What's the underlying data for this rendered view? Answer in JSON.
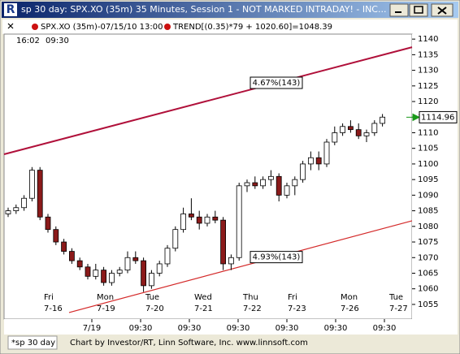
{
  "window": {
    "title": "sp 30 day: SPX.XO (35m) 35 Minutes, Session 1 - NOT MARKED INTRADAY! - INC..."
  },
  "legend": {
    "symbol": "SPX.XO (35m)-07/15/10 13:00",
    "indicator": "TREND[(0.35)*79 + 1020.60]=1048.39"
  },
  "status_bar": {
    "tab": "*sp 30 day",
    "credit": "Chart by Investor/RT, Linn Software, Inc. www.linnsoft.com"
  },
  "chart_data": {
    "type": "candlestick",
    "session_times": [
      "16:02",
      "09:30"
    ],
    "open": [
      1084,
      1085,
      1086,
      1089,
      1098,
      1083,
      1079,
      1075,
      1072,
      1069,
      1067,
      1064,
      1066,
      1062,
      1065,
      1066,
      1070,
      1069,
      1061,
      1065,
      1068,
      1073,
      1079,
      1084,
      1083,
      1081,
      1083,
      1082,
      1068,
      1070,
      1093,
      1094,
      1093,
      1095,
      1096,
      1090,
      1093,
      1095,
      1100,
      1102,
      1100,
      1107,
      1110,
      1112,
      1111,
      1109,
      1110,
      1113
    ],
    "high": [
      1086,
      1087,
      1090,
      1099,
      1099,
      1084,
      1080,
      1076,
      1073,
      1070,
      1068,
      1068,
      1067,
      1066,
      1067,
      1072,
      1072,
      1070,
      1066,
      1069,
      1074,
      1080,
      1086,
      1089,
      1085,
      1084,
      1085,
      1083,
      1071,
      1094,
      1095,
      1096,
      1096,
      1098,
      1097,
      1094,
      1096,
      1101,
      1104,
      1104,
      1108,
      1112,
      1113,
      1114,
      1113,
      1111,
      1114,
      1116
    ],
    "low": [
      1083,
      1084,
      1085,
      1088,
      1082,
      1078,
      1074,
      1071,
      1068,
      1066,
      1063,
      1063,
      1061,
      1061,
      1064,
      1065,
      1068,
      1059,
      1060,
      1064,
      1067,
      1072,
      1078,
      1082,
      1079,
      1080,
      1081,
      1066,
      1066,
      1069,
      1091,
      1092,
      1092,
      1093,
      1088,
      1089,
      1090,
      1094,
      1098,
      1098,
      1099,
      1106,
      1109,
      1110,
      1108,
      1107,
      1109,
      1112
    ],
    "close": [
      1085,
      1086,
      1089,
      1098,
      1083,
      1079,
      1075,
      1072,
      1069,
      1067,
      1064,
      1066,
      1062,
      1065,
      1066,
      1070,
      1069,
      1061,
      1065,
      1068,
      1073,
      1079,
      1084,
      1083,
      1081,
      1083,
      1082,
      1068,
      1070,
      1093,
      1094,
      1093,
      1095,
      1096,
      1090,
      1093,
      1095,
      1100,
      1102,
      1100,
      1107,
      1110,
      1112,
      1111,
      1109,
      1110,
      1113,
      1115
    ],
    "up_color": "#ffffff",
    "down_color": "#8b1a1a",
    "ylim": [
      1050.3,
      1141.6
    ],
    "yticks": [
      1055,
      1060,
      1065,
      1070,
      1075,
      1080,
      1085,
      1090,
      1095,
      1100,
      1105,
      1110,
      1115,
      1120,
      1125,
      1130,
      1135,
      1140
    ],
    "last_price": 1114.96,
    "trend_lines": [
      {
        "label": "4.67%(143)",
        "start": 1103.1,
        "end": 1137.4,
        "color": "#b0103a"
      },
      {
        "label": "4.93%(143)",
        "start": 1052.4,
        "end": 1081.8,
        "color": "#d42a2a"
      }
    ],
    "day_labels": [
      {
        "day": "Fri",
        "date": "7-16"
      },
      {
        "day": "Mon",
        "date": "7-19"
      },
      {
        "day": "Tue",
        "date": "7-20"
      },
      {
        "day": "Wed",
        "date": "7-21"
      },
      {
        "day": "Thu",
        "date": "7-22"
      },
      {
        "day": "Fri",
        "date": "7-23"
      },
      {
        "day": "Mon",
        "date": "7-26"
      },
      {
        "day": "Tue",
        "date": "7-27"
      }
    ],
    "time_labels": [
      "7/19",
      "09:30",
      "09:30",
      "09:30",
      "09:30",
      "09:30",
      "09:30"
    ]
  }
}
